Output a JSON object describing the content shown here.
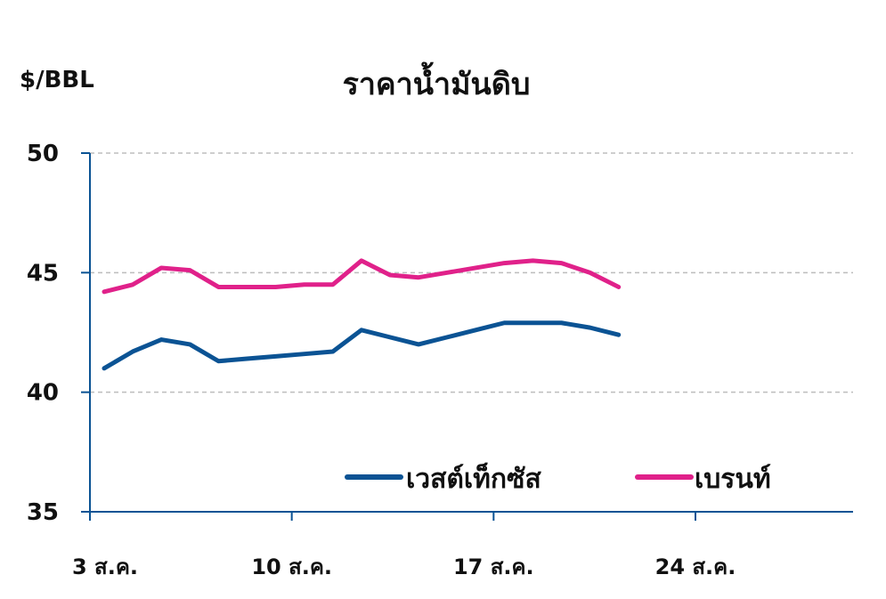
{
  "chart_data": {
    "type": "line",
    "title": "ราคาน้ำมันดิบ",
    "ylabel": "$/BBL",
    "xlabel": "",
    "ylim": [
      35,
      50
    ],
    "yticks": [
      35,
      40,
      45,
      50
    ],
    "xlim": [
      3,
      30
    ],
    "xticks": [
      {
        "value": 3,
        "label": "3 ส.ค."
      },
      {
        "value": 10,
        "label": "10 ส.ค."
      },
      {
        "value": 17,
        "label": "17 ส.ค."
      },
      {
        "value": 24,
        "label": "24 ส.ค."
      }
    ],
    "grid": true,
    "legend_position": "bottom-right",
    "x": [
      3,
      4,
      5,
      6,
      7,
      8,
      9,
      10,
      11,
      12,
      13,
      14,
      15,
      16,
      17,
      18,
      19,
      20,
      21
    ],
    "series": [
      {
        "name": "เวสต์เท็กซัส",
        "color": "#0b5394",
        "values": [
          41.0,
          41.7,
          42.2,
          42.0,
          41.3,
          41.4,
          41.5,
          41.6,
          41.7,
          42.6,
          42.3,
          42.0,
          42.3,
          42.6,
          42.9,
          42.9,
          42.9,
          42.7,
          42.4
        ]
      },
      {
        "name": "เบรนท์",
        "color": "#e0218a",
        "values": [
          44.2,
          44.5,
          45.2,
          45.1,
          44.4,
          44.4,
          44.4,
          44.5,
          44.5,
          45.5,
          44.9,
          44.8,
          45.0,
          45.2,
          45.4,
          45.5,
          45.4,
          45.0,
          44.4
        ]
      }
    ]
  }
}
